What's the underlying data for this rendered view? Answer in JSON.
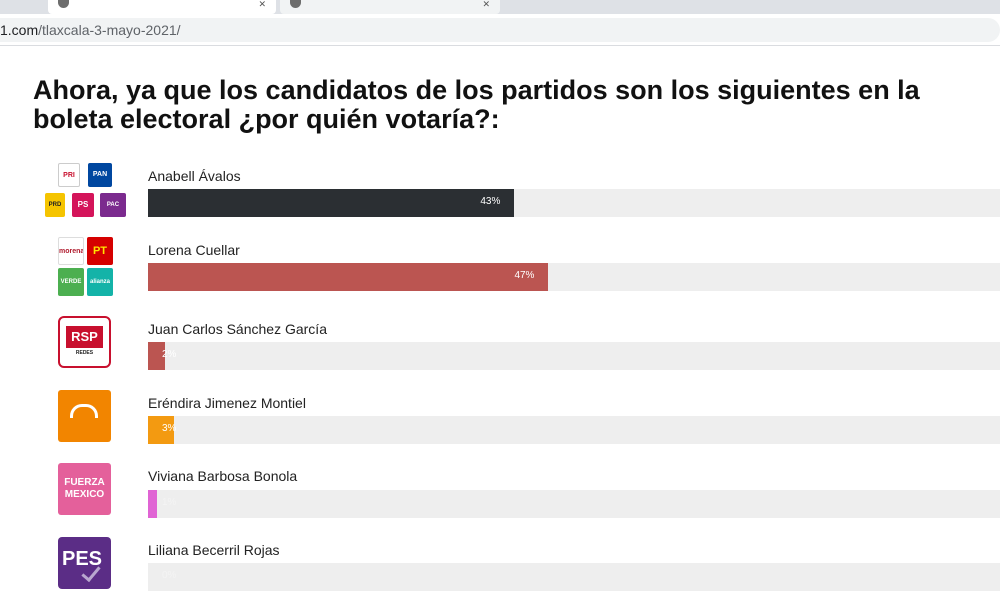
{
  "browser": {
    "url_host": "1.com",
    "url_path": "/tlaxcala-3-mayo-2021/",
    "tabs": [
      {
        "label": ""
      },
      {
        "label": ""
      },
      {
        "label": ""
      }
    ]
  },
  "poll": {
    "question": "Ahora, ya que los candidatos de los partidos son los siguientes en la boleta electoral ¿por quién votaría?:"
  },
  "colors": {
    "anabell": "#2b2f33",
    "lorena": "#bb5551",
    "juan": "#bb5551",
    "erendira": "#f39a11",
    "viviana": "#e064d4",
    "liliana": "#d8d8d8",
    "track": "#eeeeee"
  },
  "chart_data": {
    "type": "bar",
    "orientation": "horizontal",
    "title": "Ahora, ya que los candidatos de los partidos son los siguientes en la boleta electoral ¿por quién votaría?:",
    "categories": [
      "Anabell Ávalos",
      "Lorena Cuellar",
      "Juan Carlos Sánchez García",
      "Eréndira Jimenez Montiel",
      "Viviana Barbosa Bonola",
      "Liliana Becerril Rojas"
    ],
    "values": [
      43,
      47,
      2,
      3,
      1,
      0
    ],
    "value_labels": [
      "43%",
      "47%",
      "2%",
      "3%",
      "1%",
      "0%"
    ],
    "unit": "%",
    "xlim": [
      0,
      100
    ],
    "grid": false,
    "legend": "none"
  },
  "candidates": [
    {
      "name": "Anabell Ávalos",
      "label": "43%",
      "value": 43,
      "color": "#2b2f33",
      "logos": [
        {
          "text": "PRI",
          "icon": "pri-logo"
        },
        {
          "text": "PAN",
          "icon": "pan-logo"
        },
        {
          "text": "PRD",
          "icon": "prd-logo"
        },
        {
          "text": "PS",
          "icon": "ps-logo"
        },
        {
          "text": "PAC",
          "icon": "pac-logo"
        }
      ]
    },
    {
      "name": "Lorena Cuellar",
      "label": "47%",
      "value": 47,
      "color": "#bb5551",
      "logos": [
        {
          "text": "morena",
          "icon": "morena-logo"
        },
        {
          "text": "PT",
          "icon": "pt-logo"
        },
        {
          "text": "VERDE",
          "icon": "verde-logo"
        },
        {
          "text": "alianza",
          "icon": "nueva-alianza-logo"
        }
      ]
    },
    {
      "name": "Juan Carlos Sánchez García",
      "label": "2%",
      "value": 2,
      "color": "#bb5551",
      "logos": [
        {
          "text": "RSP",
          "icon": "rsp-logo"
        },
        {
          "text": "REDES",
          "icon": "rsp-sub"
        }
      ]
    },
    {
      "name": "Eréndira Jimenez Montiel",
      "label": "3%",
      "value": 3,
      "color": "#f39a11",
      "logos": [
        {
          "text": "",
          "icon": "movimiento-ciudadano-logo"
        }
      ]
    },
    {
      "name": "Viviana Barbosa Bonola",
      "label": "1%",
      "value": 1,
      "color": "#e064d4",
      "logos": [
        {
          "text": "FUERZA",
          "icon": "fuerza-mexico-logo"
        },
        {
          "text": "MEXICO",
          "icon": "fuerza-mexico-sub"
        }
      ]
    },
    {
      "name": "Liliana Becerril Rojas",
      "label": "0%",
      "value": 0,
      "color": "#d8d8d8",
      "logos": [
        {
          "text": "PES",
          "icon": "pes-logo"
        }
      ]
    }
  ]
}
